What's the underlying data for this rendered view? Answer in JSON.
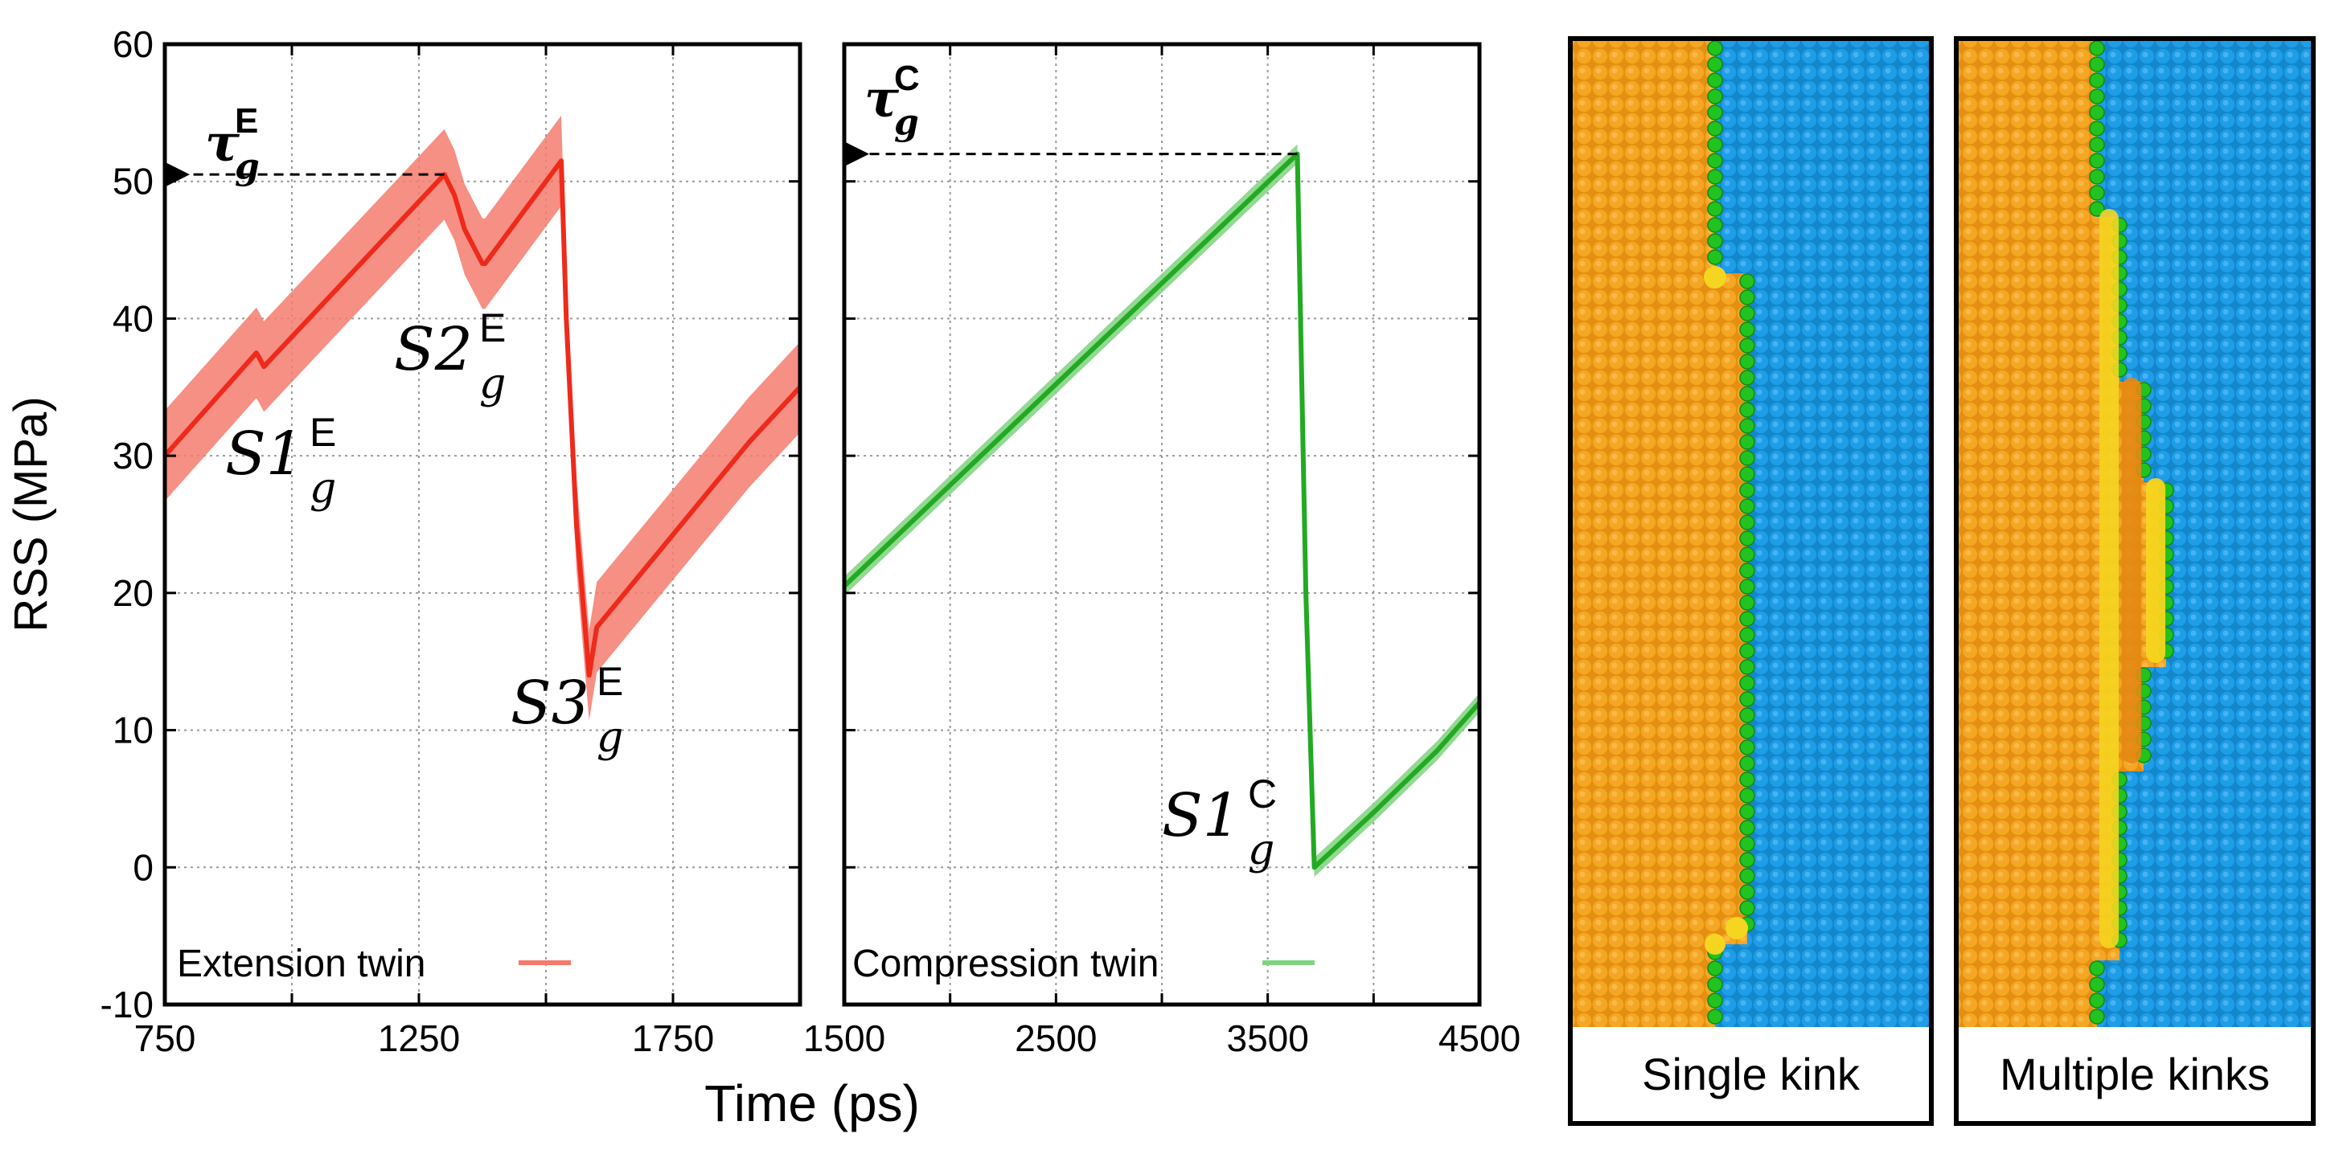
{
  "chart_data": [
    {
      "type": "line",
      "xlabel": "Time (ps)",
      "ylabel": "RSS (MPa)",
      "xlim": [
        750,
        2000
      ],
      "ylim": [
        -10,
        60
      ],
      "x_ticks": [
        "750",
        "1250",
        "1750"
      ],
      "y_ticks": [
        "-10",
        "0",
        "10",
        "20",
        "30",
        "40",
        "50",
        "60"
      ],
      "grid": true,
      "legend_position": "bottom-left",
      "series": [
        {
          "name": "Extension twin",
          "color": "#ee2a1b",
          "band_color": "#f47b6e",
          "x": [
            750,
            930,
            935,
            945,
            1300,
            1320,
            1340,
            1375,
            1380,
            1530,
            1540,
            1560,
            1585,
            1600,
            1700,
            1800,
            1900,
            2000
          ],
          "values": [
            30,
            37.5,
            37.2,
            36.5,
            50.5,
            49.0,
            46.5,
            44.0,
            44.0,
            51.5,
            40.0,
            25.0,
            14.0,
            17.5,
            22.0,
            26.5,
            31.0,
            35.0
          ],
          "band_halfwidth": 3.3
        }
      ],
      "annotations": {
        "tau": {
          "base": "τ",
          "sub": "g",
          "sup": "E",
          "y": 50.5
        },
        "s1": {
          "base": "S1",
          "sub": "g",
          "sup": "E"
        },
        "s2": {
          "base": "S2",
          "sub": "g",
          "sup": "E"
        },
        "s3": {
          "base": "S3",
          "sub": "g",
          "sup": "E"
        }
      }
    },
    {
      "type": "line",
      "xlabel": "Time (ps)",
      "xlim": [
        1500,
        4500
      ],
      "ylim": [
        -10,
        60
      ],
      "x_ticks": [
        "1500",
        "2500",
        "3500",
        "4500"
      ],
      "grid": true,
      "legend_position": "bottom-left",
      "series": [
        {
          "name": "Compression twin",
          "color": "#22aa22",
          "band_color": "#7fd27f",
          "x": [
            1500,
            3640,
            3680,
            3720,
            4000,
            4300,
            4500
          ],
          "values": [
            20.5,
            52.0,
            20.0,
            0.0,
            4.0,
            8.5,
            12.0
          ],
          "band_halfwidth": 0.7
        }
      ],
      "annotations": {
        "tau": {
          "base": "τ",
          "sub": "g",
          "sup": "C",
          "y": 52.0
        },
        "s1": {
          "base": "S1",
          "sub": "g",
          "sup": "C"
        }
      }
    }
  ],
  "panels": {
    "single": {
      "label": "Single kink"
    },
    "multiple": {
      "label": "Multiple kinks"
    }
  },
  "colors": {
    "orange_atoms": "#f5a623",
    "orange_dark": "#e38a14",
    "blue_atoms": "#1e9de8",
    "green_boundary": "#22c21f",
    "yellow_kink": "#f5d520"
  }
}
